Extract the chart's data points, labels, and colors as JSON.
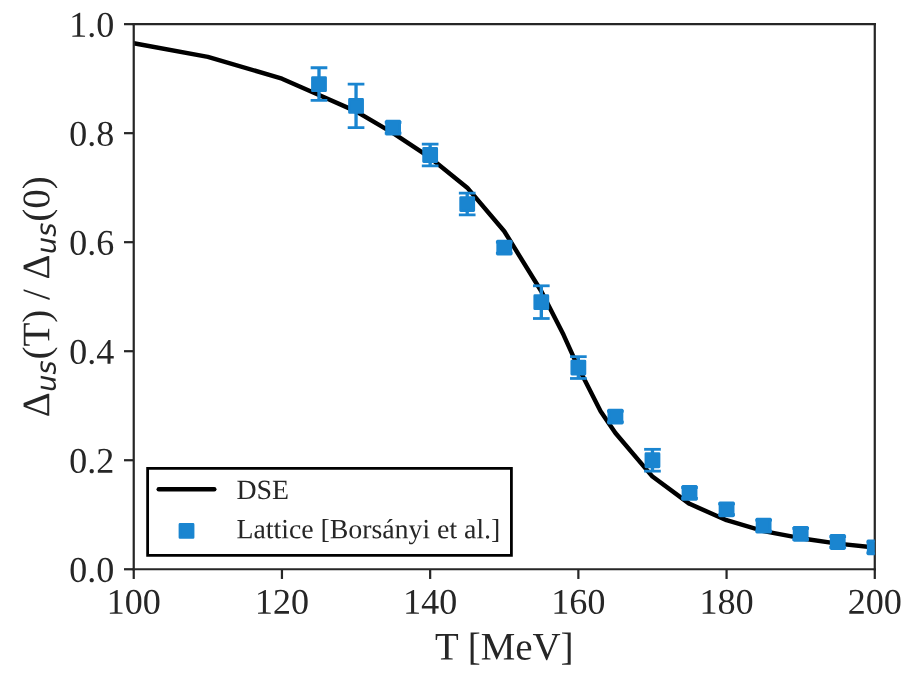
{
  "chart_data": {
    "type": "line",
    "xlabel": "T [MeV]",
    "ylabel": "Δ$_{us}$(T) / Δ$_{us}$(0)",
    "xlim": [
      100,
      200
    ],
    "xticks": [
      100,
      120,
      140,
      160,
      180,
      200
    ],
    "ylim": [
      0,
      1
    ],
    "yticks": [
      {
        "value": 0,
        "label": "0.0"
      },
      0.2,
      0.4,
      0.6,
      0.8,
      {
        "value": 1,
        "label": "1.0"
      }
    ],
    "legend": "lower left",
    "grid": false,
    "series": [
      {
        "name": "DSE",
        "color": "#000000",
        "marker": "none",
        "line_style": "solid",
        "x": [
          100,
          110,
          120,
          125,
          130,
          135,
          140,
          145,
          150,
          155,
          158,
          160,
          163,
          165,
          170,
          175,
          180,
          185,
          190,
          195,
          200
        ],
        "values": [
          0.965,
          0.94,
          0.9,
          0.87,
          0.84,
          0.8,
          0.755,
          0.7,
          0.62,
          0.51,
          0.43,
          0.37,
          0.29,
          0.25,
          0.17,
          0.12,
          0.09,
          0.07,
          0.057,
          0.047,
          0.04
        ]
      },
      {
        "name": "Lattice [Borsányi et al.]",
        "type": "scatter",
        "color": "#1a85d0",
        "marker": "square",
        "x": [
          125,
          130,
          135,
          140,
          145,
          150,
          155,
          160,
          165,
          170,
          175,
          180,
          185,
          190,
          195,
          200
        ],
        "values": [
          0.89,
          0.85,
          0.81,
          0.76,
          0.67,
          0.59,
          0.49,
          0.37,
          0.28,
          0.2,
          0.14,
          0.11,
          0.08,
          0.065,
          0.05,
          0.04
        ],
        "errors": [
          0.03,
          0.04,
          0.01,
          0.02,
          0.02,
          0.01,
          0.03,
          0.02,
          0.01,
          0.02,
          0.01,
          0.01,
          0.01,
          0.01,
          0.01,
          0.01
        ]
      }
    ]
  }
}
